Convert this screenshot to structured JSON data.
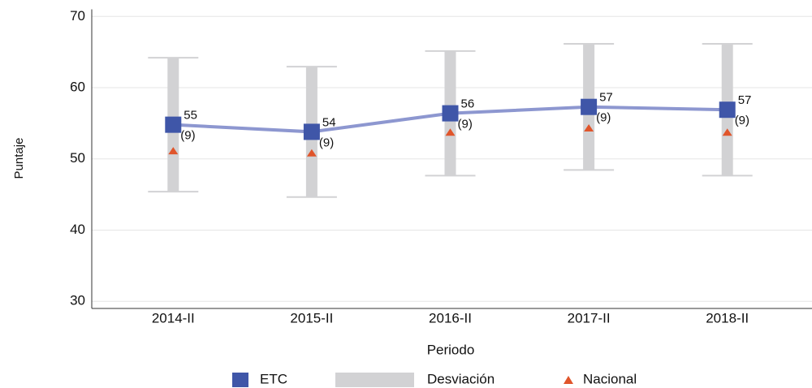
{
  "chart_data": {
    "type": "line",
    "x_label": "Periodo",
    "y_label": "Puntaje",
    "categories": [
      "2014-II",
      "2015-II",
      "2016-II",
      "2017-II",
      "2018-II"
    ],
    "series": [
      {
        "name": "ETC",
        "color": "#3f56a8",
        "line_color": "#8d97d0",
        "values": [
          54.8,
          53.8,
          56.4,
          57.3,
          56.9
        ],
        "value_labels": [
          "55",
          "54",
          "56",
          "57",
          "57"
        ]
      },
      {
        "name": "Desviación",
        "color": "#d2d2d4",
        "values": [
          9.4,
          9.15,
          8.75,
          8.85,
          9.25
        ],
        "value_labels": [
          "(9)",
          "(9)",
          "(9)",
          "(9)",
          "(9)"
        ]
      },
      {
        "name": "Nacional",
        "color": "#e0552b",
        "values": [
          51.1,
          50.8,
          53.7,
          54.3,
          53.7
        ]
      }
    ],
    "ylim": [
      29,
      71
    ],
    "yticks": [
      30,
      40,
      50,
      60,
      70
    ],
    "grid": true
  }
}
